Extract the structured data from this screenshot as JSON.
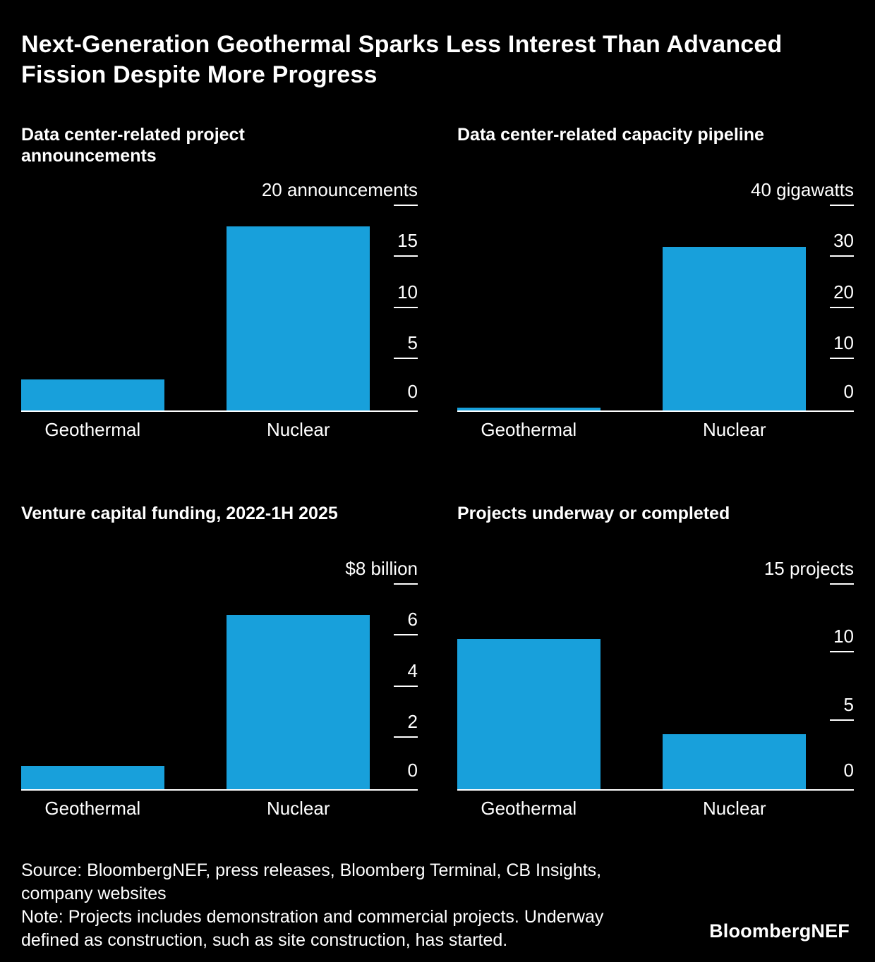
{
  "page": {
    "title": "Next-Generation Geothermal Sparks Less Interest Than Advanced Fission Despite More Progress",
    "source": "Source: BloombergNEF, press releases, Bloomberg Terminal, CB Insights, company websites",
    "note": "Note: Projects includes demonstration and commercial projects. Underway defined as construction, such as site construction, has started.",
    "logo": "BloombergNEF"
  },
  "colors": {
    "background": "#000000",
    "bar": "#18a0db",
    "text": "#ffffff"
  },
  "chart_data": [
    {
      "type": "bar",
      "title": "Data center-related project announcements",
      "unit_label": "20 announcements",
      "axis_max": 20,
      "ticks": [
        15,
        10,
        5,
        0
      ],
      "categories": [
        "Geothermal",
        "Nuclear"
      ],
      "values": [
        3,
        18
      ],
      "ylim": [
        0,
        20
      ],
      "grid": false,
      "axis_side": "right"
    },
    {
      "type": "bar",
      "title": "Data center-related capacity pipeline",
      "unit_label": "40 gigawatts",
      "axis_max": 40,
      "ticks": [
        30,
        20,
        10,
        0
      ],
      "categories": [
        "Geothermal",
        "Nuclear"
      ],
      "values": [
        0.5,
        32
      ],
      "ylim": [
        0,
        40
      ],
      "grid": false,
      "axis_side": "right"
    },
    {
      "type": "bar",
      "title": "Venture capital funding, 2022-1H 2025",
      "unit_label": "$8 billion",
      "axis_max": 8,
      "ticks": [
        6,
        4,
        2,
        0
      ],
      "categories": [
        "Geothermal",
        "Nuclear"
      ],
      "values": [
        0.9,
        6.8
      ],
      "ylim": [
        0,
        8
      ],
      "grid": false,
      "axis_side": "right"
    },
    {
      "type": "bar",
      "title": "Projects underway or completed",
      "unit_label": "15 projects",
      "axis_max": 15,
      "ticks": [
        10,
        5,
        0
      ],
      "categories": [
        "Geothermal",
        "Nuclear"
      ],
      "values": [
        11,
        4
      ],
      "ylim": [
        0,
        15
      ],
      "grid": false,
      "axis_side": "right"
    }
  ]
}
